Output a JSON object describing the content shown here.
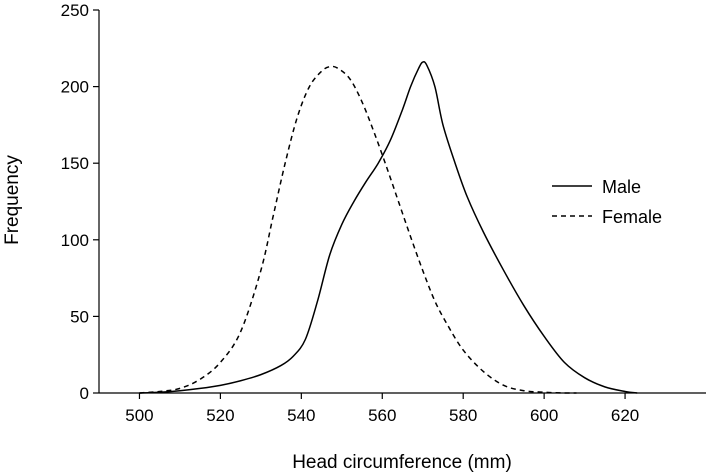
{
  "chart_data": {
    "type": "line",
    "title": "",
    "xlabel": "Head circumference (mm)",
    "ylabel": "Frequency",
    "xlim": [
      490,
      640
    ],
    "ylim": [
      0,
      250
    ],
    "xticks": [
      500,
      520,
      540,
      560,
      580,
      600,
      620
    ],
    "yticks": [
      0,
      50,
      100,
      150,
      200,
      250
    ],
    "grid": false,
    "legend_position": "right",
    "series": [
      {
        "name": "Male",
        "style": "solid",
        "color": "#000000",
        "x": [
          500,
          505,
          510,
          515,
          520,
          525,
          530,
          535,
          538,
          541,
          544,
          547,
          550,
          553,
          556,
          559,
          562,
          565,
          567,
          569,
          570,
          571,
          573,
          575,
          578,
          581,
          585,
          590,
          595,
          600,
          605,
          610,
          615,
          620,
          623
        ],
        "y": [
          0,
          0.5,
          1.5,
          3,
          5,
          8,
          12,
          18,
          24,
          35,
          60,
          90,
          110,
          125,
          138,
          150,
          165,
          185,
          200,
          212,
          216,
          214,
          200,
          175,
          150,
          128,
          105,
          80,
          57,
          37,
          20,
          10,
          4,
          1,
          0
        ]
      },
      {
        "name": "Female",
        "style": "dashed",
        "color": "#000000",
        "x": [
          500,
          505,
          510,
          515,
          520,
          525,
          530,
          533,
          536,
          539,
          542,
          545,
          547,
          549,
          552,
          555,
          558,
          561,
          564,
          567,
          570,
          573,
          576,
          580,
          585,
          590,
          595,
          600,
          605,
          608
        ],
        "y": [
          0,
          1,
          3,
          9,
          20,
          40,
          80,
          115,
          150,
          180,
          200,
          210,
          213,
          212,
          205,
          190,
          170,
          148,
          125,
          102,
          80,
          60,
          45,
          28,
          14,
          5,
          1.5,
          0.5,
          0,
          0
        ]
      }
    ]
  }
}
